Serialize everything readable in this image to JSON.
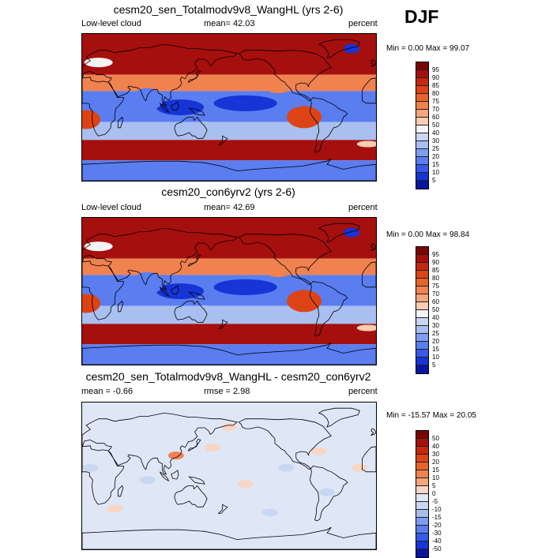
{
  "season": "DJF",
  "panels": [
    {
      "title": "cesm20_sen_Totalmodv9v8_WangHL (yrs 2-6)",
      "left_label": "Low-level cloud",
      "stat_label": "mean=  42.03",
      "units": "percent",
      "range_text": "Min =   0.00 Max =  99.07",
      "field": "absolute",
      "colorbar": {
        "labels": [
          "95",
          "90",
          "85",
          "80",
          "75",
          "70",
          "60",
          "50",
          "40",
          "30",
          "25",
          "20",
          "15",
          "10",
          "5"
        ],
        "colors": [
          "#7a0403",
          "#a50f0d",
          "#c8270f",
          "#dc4416",
          "#e8632a",
          "#f08250",
          "#f6a57c",
          "#f8cdb2",
          "#f3f3f3",
          "#c9d7f1",
          "#a9bff0",
          "#7f9df0",
          "#5a7df0",
          "#3858ec",
          "#1734d6",
          "#0a159e"
        ]
      }
    },
    {
      "title": "cesm20_con6yrv2 (yrs 2-6)",
      "left_label": "Low-level cloud",
      "stat_label": "mean=  42.69",
      "units": "percent",
      "range_text": "Min =   0.00 Max =  98.84",
      "field": "absolute",
      "colorbar": {
        "labels": [
          "95",
          "90",
          "85",
          "80",
          "75",
          "70",
          "60",
          "50",
          "40",
          "30",
          "25",
          "20",
          "15",
          "10",
          "5"
        ],
        "colors": [
          "#7a0403",
          "#a50f0d",
          "#c8270f",
          "#dc4416",
          "#e8632a",
          "#f08250",
          "#f6a57c",
          "#f8cdb2",
          "#f3f3f3",
          "#c9d7f1",
          "#a9bff0",
          "#7f9df0",
          "#5a7df0",
          "#3858ec",
          "#1734d6",
          "#0a159e"
        ]
      }
    },
    {
      "title": "cesm20_sen_Totalmodv9v8_WangHL - cesm20_con6yrv2",
      "left_label": "mean =  -0.66",
      "stat_label": "rmse =   2.98",
      "units": "percent",
      "range_text": "Min = -15.57 Max =  20.05",
      "field": "difference",
      "colorbar": {
        "labels": [
          "50",
          "40",
          "30",
          "20",
          "15",
          "10",
          "5",
          "0",
          "-5",
          "-10",
          "-15",
          "-20",
          "-30",
          "-40",
          "-50"
        ],
        "colors": [
          "#7a0403",
          "#a50f0d",
          "#c8270f",
          "#dc4416",
          "#e8632a",
          "#f08250",
          "#f6a57c",
          "#f8d5c4",
          "#dfe7f7",
          "#c9d7f1",
          "#a9bff0",
          "#7f9df0",
          "#5a7df0",
          "#3858ec",
          "#1734d6",
          "#0a159e"
        ]
      }
    }
  ]
}
